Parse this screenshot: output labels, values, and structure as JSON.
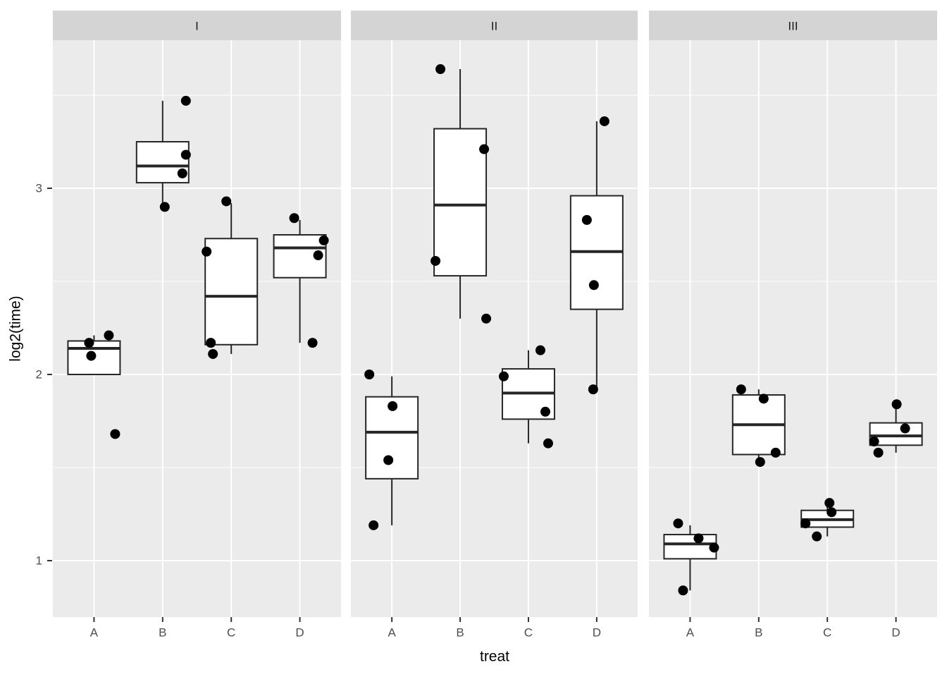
{
  "chart_data": {
    "type": "boxplot",
    "title": "",
    "x_axis_title": "treat",
    "y_axis_title": "log2(time)",
    "facets": [
      "I",
      "II",
      "III"
    ],
    "categories": [
      "A",
      "B",
      "C",
      "D"
    ],
    "y_ticks": [
      1,
      2,
      3
    ],
    "y_tick_labels": [
      "1",
      "2",
      "3"
    ],
    "y_minor_gridlines": [
      1.5,
      2.5,
      3.5
    ],
    "ylim": [
      0.7,
      3.79
    ],
    "grid": true,
    "legend": "none",
    "points_per_group": 4,
    "groups": [
      {
        "facet": "I",
        "treat": "A",
        "box": {
          "q1": 2.0,
          "median": 2.14,
          "q3": 2.18,
          "whisker_low": 2.0,
          "whisker_high": 2.21
        },
        "points": [
          {
            "y": 2.21,
            "dx": 21
          },
          {
            "y": 2.17,
            "dx": -7
          },
          {
            "y": 2.1,
            "dx": -4
          },
          {
            "y": 1.68,
            "dx": 30
          }
        ]
      },
      {
        "facet": "I",
        "treat": "B",
        "box": {
          "q1": 3.03,
          "median": 3.12,
          "q3": 3.25,
          "whisker_low": 2.9,
          "whisker_high": 3.47
        },
        "points": [
          {
            "y": 3.47,
            "dx": 33
          },
          {
            "y": 3.18,
            "dx": 33
          },
          {
            "y": 3.08,
            "dx": 28
          },
          {
            "y": 2.9,
            "dx": 3
          }
        ]
      },
      {
        "facet": "I",
        "treat": "C",
        "box": {
          "q1": 2.16,
          "median": 2.42,
          "q3": 2.73,
          "whisker_low": 2.11,
          "whisker_high": 2.92
        },
        "points": [
          {
            "y": 2.93,
            "dx": -7
          },
          {
            "y": 2.66,
            "dx": -35
          },
          {
            "y": 2.17,
            "dx": -29
          },
          {
            "y": 2.11,
            "dx": -26
          }
        ]
      },
      {
        "facet": "I",
        "treat": "D",
        "box": {
          "q1": 2.52,
          "median": 2.68,
          "q3": 2.75,
          "whisker_low": 2.17,
          "whisker_high": 2.83
        },
        "points": [
          {
            "y": 2.84,
            "dx": -8
          },
          {
            "y": 2.72,
            "dx": 34
          },
          {
            "y": 2.64,
            "dx": 26
          },
          {
            "y": 2.17,
            "dx": 18
          }
        ]
      },
      {
        "facet": "II",
        "treat": "A",
        "box": {
          "q1": 1.44,
          "median": 1.69,
          "q3": 1.88,
          "whisker_low": 1.19,
          "whisker_high": 1.99
        },
        "points": [
          {
            "y": 2.0,
            "dx": -32
          },
          {
            "y": 1.83,
            "dx": 1
          },
          {
            "y": 1.54,
            "dx": -5
          },
          {
            "y": 1.19,
            "dx": -26
          }
        ]
      },
      {
        "facet": "II",
        "treat": "B",
        "box": {
          "q1": 2.53,
          "median": 2.91,
          "q3": 3.32,
          "whisker_low": 2.3,
          "whisker_high": 3.64
        },
        "points": [
          {
            "y": 3.64,
            "dx": -28
          },
          {
            "y": 3.21,
            "dx": 34
          },
          {
            "y": 2.61,
            "dx": -35
          },
          {
            "y": 2.3,
            "dx": 37
          }
        ]
      },
      {
        "facet": "II",
        "treat": "C",
        "box": {
          "q1": 1.76,
          "median": 1.9,
          "q3": 2.03,
          "whisker_low": 1.63,
          "whisker_high": 2.13
        },
        "points": [
          {
            "y": 2.13,
            "dx": 17
          },
          {
            "y": 1.99,
            "dx": -35
          },
          {
            "y": 1.8,
            "dx": 24
          },
          {
            "y": 1.63,
            "dx": 28
          }
        ]
      },
      {
        "facet": "II",
        "treat": "D",
        "box": {
          "q1": 2.35,
          "median": 2.66,
          "q3": 2.96,
          "whisker_low": 1.92,
          "whisker_high": 3.36
        },
        "points": [
          {
            "y": 3.36,
            "dx": 11
          },
          {
            "y": 2.83,
            "dx": -14
          },
          {
            "y": 2.48,
            "dx": -4
          },
          {
            "y": 1.92,
            "dx": -5
          }
        ]
      },
      {
        "facet": "III",
        "treat": "A",
        "box": {
          "q1": 1.01,
          "median": 1.09,
          "q3": 1.14,
          "whisker_low": 0.84,
          "whisker_high": 1.19
        },
        "points": [
          {
            "y": 1.2,
            "dx": -17
          },
          {
            "y": 1.12,
            "dx": 12
          },
          {
            "y": 1.07,
            "dx": 34
          },
          {
            "y": 0.84,
            "dx": -10
          }
        ]
      },
      {
        "facet": "III",
        "treat": "B",
        "box": {
          "q1": 1.57,
          "median": 1.73,
          "q3": 1.89,
          "whisker_low": 1.53,
          "whisker_high": 1.92
        },
        "points": [
          {
            "y": 1.92,
            "dx": -25
          },
          {
            "y": 1.87,
            "dx": 7
          },
          {
            "y": 1.58,
            "dx": 24
          },
          {
            "y": 1.53,
            "dx": 2
          }
        ]
      },
      {
        "facet": "III",
        "treat": "C",
        "box": {
          "q1": 1.18,
          "median": 1.22,
          "q3": 1.27,
          "whisker_low": 1.13,
          "whisker_high": 1.31
        },
        "points": [
          {
            "y": 1.31,
            "dx": 3
          },
          {
            "y": 1.26,
            "dx": 6
          },
          {
            "y": 1.2,
            "dx": -31
          },
          {
            "y": 1.13,
            "dx": -15
          }
        ]
      },
      {
        "facet": "III",
        "treat": "D",
        "box": {
          "q1": 1.62,
          "median": 1.67,
          "q3": 1.74,
          "whisker_low": 1.58,
          "whisker_high": 1.83
        },
        "points": [
          {
            "y": 1.84,
            "dx": 1
          },
          {
            "y": 1.71,
            "dx": 13
          },
          {
            "y": 1.64,
            "dx": -31
          },
          {
            "y": 1.58,
            "dx": -25
          }
        ]
      }
    ]
  },
  "style": {
    "panel_bg": "#EBEBEB",
    "strip_bg": "#D4D4D4",
    "gridline": "#FFFFFF",
    "box_fill": "#FFFFFF",
    "box_stroke": "#262626",
    "point_color": "#000000",
    "axis_text": "#4D4D4D",
    "tick_mark": "#333333",
    "title_color": "#000000"
  }
}
